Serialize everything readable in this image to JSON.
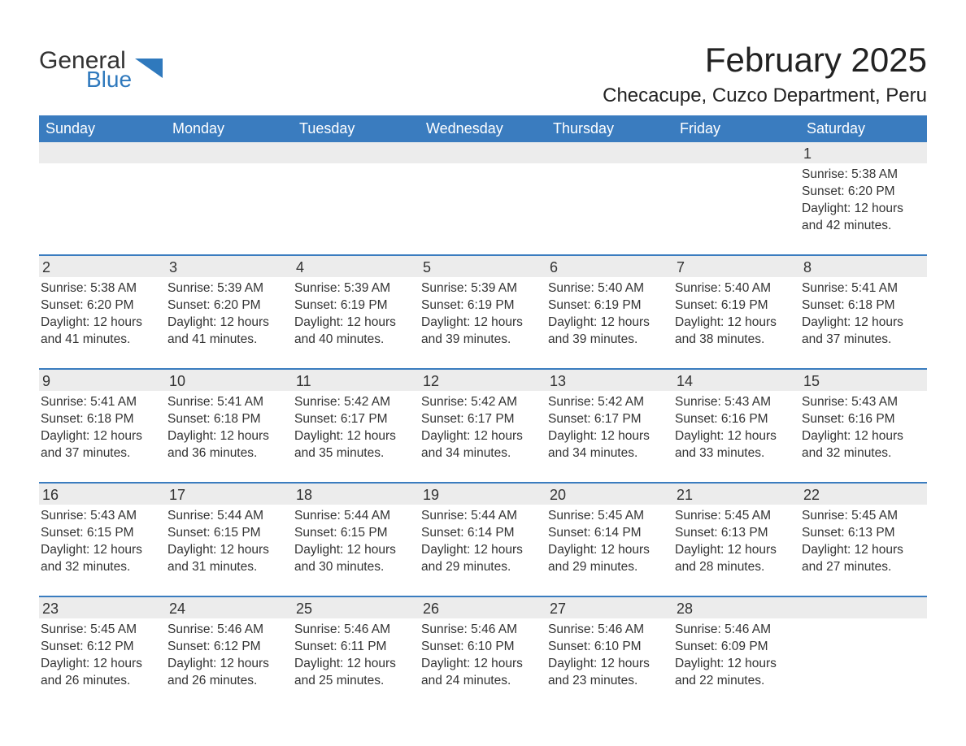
{
  "logo": {
    "word1": "General",
    "word2": "Blue",
    "accent_color": "#2f79bd"
  },
  "title": "February 2025",
  "location": "Checacupe, Cuzco Department, Peru",
  "header_bg": "#3a7cbf",
  "header_fg": "#ffffff",
  "daynum_bg": "#ececec",
  "border_color": "#3a7cbf",
  "text_color": "#333333",
  "day_names": [
    "Sunday",
    "Monday",
    "Tuesday",
    "Wednesday",
    "Thursday",
    "Friday",
    "Saturday"
  ],
  "labels": {
    "sunrise": "Sunrise:",
    "sunset": "Sunset:",
    "daylight": "Daylight:"
  },
  "weeks": [
    [
      null,
      null,
      null,
      null,
      null,
      null,
      {
        "n": "1",
        "sunrise": "5:38 AM",
        "sunset": "6:20 PM",
        "daylight": "12 hours and 42 minutes."
      }
    ],
    [
      {
        "n": "2",
        "sunrise": "5:38 AM",
        "sunset": "6:20 PM",
        "daylight": "12 hours and 41 minutes."
      },
      {
        "n": "3",
        "sunrise": "5:39 AM",
        "sunset": "6:20 PM",
        "daylight": "12 hours and 41 minutes."
      },
      {
        "n": "4",
        "sunrise": "5:39 AM",
        "sunset": "6:19 PM",
        "daylight": "12 hours and 40 minutes."
      },
      {
        "n": "5",
        "sunrise": "5:39 AM",
        "sunset": "6:19 PM",
        "daylight": "12 hours and 39 minutes."
      },
      {
        "n": "6",
        "sunrise": "5:40 AM",
        "sunset": "6:19 PM",
        "daylight": "12 hours and 39 minutes."
      },
      {
        "n": "7",
        "sunrise": "5:40 AM",
        "sunset": "6:19 PM",
        "daylight": "12 hours and 38 minutes."
      },
      {
        "n": "8",
        "sunrise": "5:41 AM",
        "sunset": "6:18 PM",
        "daylight": "12 hours and 37 minutes."
      }
    ],
    [
      {
        "n": "9",
        "sunrise": "5:41 AM",
        "sunset": "6:18 PM",
        "daylight": "12 hours and 37 minutes."
      },
      {
        "n": "10",
        "sunrise": "5:41 AM",
        "sunset": "6:18 PM",
        "daylight": "12 hours and 36 minutes."
      },
      {
        "n": "11",
        "sunrise": "5:42 AM",
        "sunset": "6:17 PM",
        "daylight": "12 hours and 35 minutes."
      },
      {
        "n": "12",
        "sunrise": "5:42 AM",
        "sunset": "6:17 PM",
        "daylight": "12 hours and 34 minutes."
      },
      {
        "n": "13",
        "sunrise": "5:42 AM",
        "sunset": "6:17 PM",
        "daylight": "12 hours and 34 minutes."
      },
      {
        "n": "14",
        "sunrise": "5:43 AM",
        "sunset": "6:16 PM",
        "daylight": "12 hours and 33 minutes."
      },
      {
        "n": "15",
        "sunrise": "5:43 AM",
        "sunset": "6:16 PM",
        "daylight": "12 hours and 32 minutes."
      }
    ],
    [
      {
        "n": "16",
        "sunrise": "5:43 AM",
        "sunset": "6:15 PM",
        "daylight": "12 hours and 32 minutes."
      },
      {
        "n": "17",
        "sunrise": "5:44 AM",
        "sunset": "6:15 PM",
        "daylight": "12 hours and 31 minutes."
      },
      {
        "n": "18",
        "sunrise": "5:44 AM",
        "sunset": "6:15 PM",
        "daylight": "12 hours and 30 minutes."
      },
      {
        "n": "19",
        "sunrise": "5:44 AM",
        "sunset": "6:14 PM",
        "daylight": "12 hours and 29 minutes."
      },
      {
        "n": "20",
        "sunrise": "5:45 AM",
        "sunset": "6:14 PM",
        "daylight": "12 hours and 29 minutes."
      },
      {
        "n": "21",
        "sunrise": "5:45 AM",
        "sunset": "6:13 PM",
        "daylight": "12 hours and 28 minutes."
      },
      {
        "n": "22",
        "sunrise": "5:45 AM",
        "sunset": "6:13 PM",
        "daylight": "12 hours and 27 minutes."
      }
    ],
    [
      {
        "n": "23",
        "sunrise": "5:45 AM",
        "sunset": "6:12 PM",
        "daylight": "12 hours and 26 minutes."
      },
      {
        "n": "24",
        "sunrise": "5:46 AM",
        "sunset": "6:12 PM",
        "daylight": "12 hours and 26 minutes."
      },
      {
        "n": "25",
        "sunrise": "5:46 AM",
        "sunset": "6:11 PM",
        "daylight": "12 hours and 25 minutes."
      },
      {
        "n": "26",
        "sunrise": "5:46 AM",
        "sunset": "6:10 PM",
        "daylight": "12 hours and 24 minutes."
      },
      {
        "n": "27",
        "sunrise": "5:46 AM",
        "sunset": "6:10 PM",
        "daylight": "12 hours and 23 minutes."
      },
      {
        "n": "28",
        "sunrise": "5:46 AM",
        "sunset": "6:09 PM",
        "daylight": "12 hours and 22 minutes."
      },
      null
    ]
  ]
}
